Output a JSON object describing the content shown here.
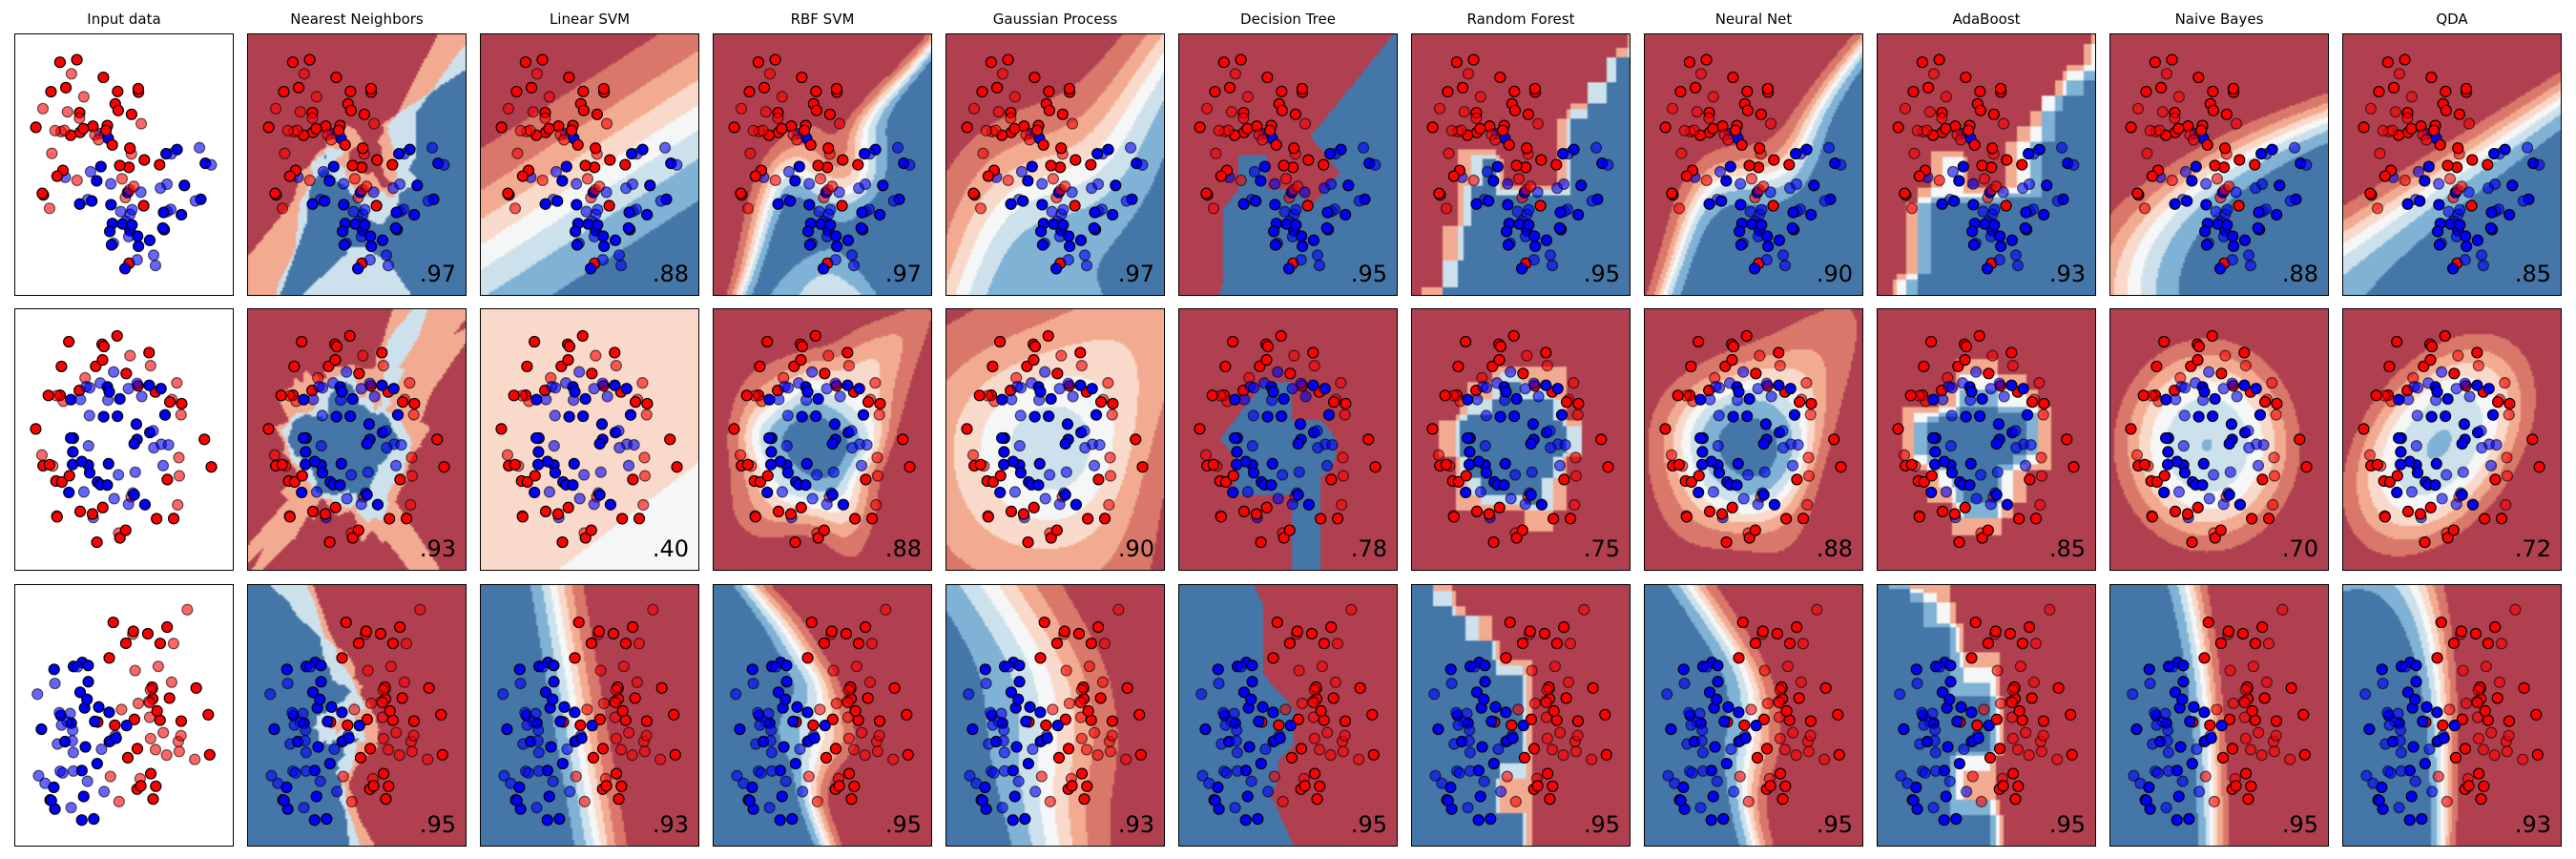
{
  "chart_data": {
    "type": "scatter",
    "titles": [
      "Input data",
      "Nearest Neighbors",
      "Linear SVM",
      "RBF SVM",
      "Gaussian Process",
      "Decision Tree",
      "Random Forest",
      "Neural Net",
      "AdaBoost",
      "Naive Bayes",
      "QDA"
    ],
    "rows": [
      {
        "scores": [
          ".97",
          ".88",
          ".97",
          ".97",
          ".95",
          ".95",
          ".90",
          ".93",
          ".88",
          ".85"
        ]
      },
      {
        "scores": [
          ".93",
          ".40",
          ".88",
          ".90",
          ".78",
          ".75",
          ".88",
          ".85",
          ".70",
          ".72"
        ]
      },
      {
        "scores": [
          ".95",
          ".93",
          ".95",
          ".93",
          ".95",
          ".95",
          ".95",
          ".95",
          ".95",
          ".93"
        ]
      }
    ],
    "colormap": "RdBu",
    "class_colors": [
      "#FF0000",
      "#0000FF"
    ],
    "grid": false,
    "legend": "none"
  }
}
